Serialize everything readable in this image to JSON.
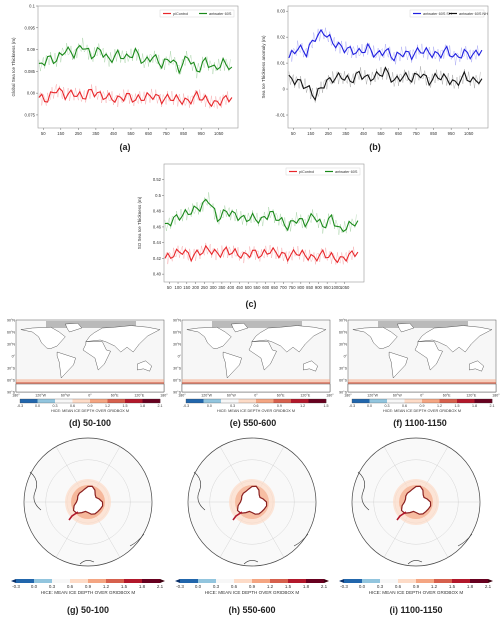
{
  "chart_data": [
    {
      "panel": "a",
      "type": "line",
      "ylabel": "Global Sea Ice Thickness (m)",
      "xlim": [
        20,
        1160
      ],
      "ylim": [
        0.072,
        0.1
      ],
      "xticks": [
        50,
        150,
        250,
        350,
        450,
        550,
        650,
        750,
        850,
        950,
        1050
      ],
      "yticks": [
        0.075,
        0.08,
        0.085,
        0.09,
        0.095,
        0.1
      ],
      "ytick_labels": [
        "0.075",
        "0.08",
        "0.085",
        "0.09",
        "0.095",
        "0.1"
      ],
      "legend_position": "top-right",
      "series": [
        {
          "name": "piControl",
          "color": "#e8262a",
          "x": [
            25,
            75,
            125,
            175,
            225,
            275,
            325,
            375,
            425,
            475,
            525,
            575,
            625,
            675,
            725,
            775,
            825,
            875,
            925,
            975,
            1025,
            1075,
            1125
          ],
          "values": [
            0.079,
            0.0785,
            0.081,
            0.0795,
            0.08,
            0.079,
            0.0805,
            0.0795,
            0.079,
            0.0785,
            0.0795,
            0.0785,
            0.079,
            0.0795,
            0.0785,
            0.079,
            0.0785,
            0.078,
            0.0795,
            0.0785,
            0.0775,
            0.0785,
            0.079
          ]
        },
        {
          "name": "antwater 60S",
          "color": "#1a8a1a",
          "x": [
            25,
            75,
            125,
            175,
            225,
            275,
            325,
            375,
            425,
            475,
            525,
            575,
            625,
            675,
            725,
            775,
            825,
            875,
            925,
            975,
            1025,
            1075,
            1125
          ],
          "values": [
            0.086,
            0.088,
            0.0875,
            0.09,
            0.089,
            0.091,
            0.0885,
            0.09,
            0.0875,
            0.089,
            0.088,
            0.0895,
            0.087,
            0.0885,
            0.0865,
            0.088,
            0.0855,
            0.0885,
            0.085,
            0.0875,
            0.0855,
            0.087,
            0.086
          ]
        }
      ]
    },
    {
      "panel": "b",
      "type": "line",
      "ylabel": "Sea Ice Thickness anomaly (m)",
      "xlim": [
        20,
        1160
      ],
      "ylim": [
        -0.015,
        0.032
      ],
      "xticks": [
        50,
        150,
        250,
        350,
        450,
        550,
        650,
        750,
        850,
        950,
        1050
      ],
      "yticks": [
        -0.01,
        0,
        0.01,
        0.02,
        0.03
      ],
      "ytick_labels": [
        "-0.01",
        "0",
        "0.01",
        "0.02",
        "0.03"
      ],
      "legend_position": "top-right",
      "series": [
        {
          "name": "antwater 60S SH",
          "color": "#1f1fe0",
          "x": [
            25,
            75,
            125,
            175,
            225,
            275,
            325,
            375,
            425,
            475,
            525,
            575,
            625,
            675,
            725,
            775,
            825,
            875,
            925,
            975,
            1025,
            1075,
            1125
          ],
          "values": [
            0.012,
            0.016,
            0.014,
            0.02,
            0.022,
            0.018,
            0.016,
            0.015,
            0.014,
            0.016,
            0.013,
            0.015,
            0.012,
            0.014,
            0.013,
            0.015,
            0.014,
            0.013,
            0.015,
            0.012,
            0.014,
            0.013,
            0.015
          ]
        },
        {
          "name": "antwater 60S NH",
          "color": "#111111",
          "x": [
            25,
            75,
            125,
            175,
            225,
            275,
            325,
            375,
            425,
            475,
            525,
            575,
            625,
            675,
            725,
            775,
            825,
            875,
            925,
            975,
            1025,
            1075,
            1125
          ],
          "values": [
            0.004,
            0.003,
            0.001,
            -0.003,
            0.002,
            0.004,
            0.005,
            0.003,
            0.006,
            0.004,
            0.005,
            0.007,
            0.003,
            0.005,
            0.004,
            0.006,
            0.003,
            0.005,
            0.004,
            0.002,
            0.005,
            0.003,
            0.004
          ]
        }
      ]
    },
    {
      "panel": "c",
      "type": "line",
      "ylabel": "SO Sea Ice Thickness (m)",
      "xlim": [
        20,
        1160
      ],
      "ylim": [
        0.39,
        0.54
      ],
      "xticks": [
        50,
        100,
        150,
        200,
        250,
        300,
        350,
        400,
        450,
        500,
        550,
        600,
        650,
        700,
        750,
        800,
        850,
        900,
        950,
        1000,
        1050
      ],
      "yticks": [
        0.4,
        0.42,
        0.44,
        0.46,
        0.48,
        0.5,
        0.52
      ],
      "ytick_labels": [
        "0.40",
        "0.42",
        "0.44",
        "0.46",
        "0.48",
        "0.5",
        "0.52"
      ],
      "legend_position": "top-right",
      "series": [
        {
          "name": "piControl",
          "color": "#e8262a",
          "x": [
            25,
            75,
            125,
            175,
            225,
            275,
            325,
            375,
            425,
            475,
            525,
            575,
            625,
            675,
            725,
            775,
            825,
            875,
            925,
            975,
            1025,
            1075,
            1125
          ],
          "values": [
            0.42,
            0.425,
            0.43,
            0.422,
            0.428,
            0.432,
            0.425,
            0.43,
            0.427,
            0.423,
            0.428,
            0.424,
            0.43,
            0.426,
            0.422,
            0.428,
            0.424,
            0.42,
            0.426,
            0.422,
            0.418,
            0.424,
            0.428
          ]
        },
        {
          "name": "antwater 60S",
          "color": "#1a8a1a",
          "x": [
            25,
            75,
            125,
            175,
            225,
            275,
            325,
            375,
            425,
            475,
            525,
            575,
            625,
            675,
            725,
            775,
            825,
            875,
            925,
            975,
            1025,
            1075,
            1125
          ],
          "values": [
            0.46,
            0.47,
            0.475,
            0.48,
            0.485,
            0.495,
            0.47,
            0.48,
            0.475,
            0.47,
            0.472,
            0.468,
            0.478,
            0.47,
            0.46,
            0.47,
            0.465,
            0.475,
            0.46,
            0.472,
            0.455,
            0.462,
            0.468
          ]
        }
      ]
    }
  ],
  "captions": {
    "a": "(a)",
    "b": "(b)",
    "c": "(c)",
    "d_letter": "(d)",
    "d_range": "50-100",
    "e_letter": "(e)",
    "e_range": "550-600",
    "f_letter": "(f)",
    "f_range": "1100-1150",
    "g_letter": "(g)",
    "g_range": "50-100",
    "h_letter": "(h)",
    "h_range": "550-600",
    "i_letter": "(i)",
    "i_range": "1100-1150"
  },
  "maps": {
    "lat_labels": [
      "90°N",
      "60°N",
      "30°N",
      "0°",
      "30°S",
      "60°S",
      "90°S"
    ],
    "lon_labels": [
      "180°",
      "120°W",
      "60°W",
      "0°",
      "60°E",
      "120°E",
      "180°"
    ],
    "colorbar_title": "HICE: MEAN ICE DEPTH OVER GRIDBOX  M",
    "colorbar_ticks_a": [
      "-0.3",
      "0.0",
      "0.3",
      "0.6",
      "0.9",
      "1.2",
      "1.5",
      "1.8",
      "2.1"
    ],
    "colorbar_ticks_b": [
      "-0.3",
      "0.0",
      "0.3",
      "0.6",
      "0.9",
      "1.2",
      "1.5"
    ],
    "colorbar_ticks_c": [
      "-0.3",
      "0.0",
      "0.3",
      "0.6",
      "0.9",
      "1.2",
      "1.5",
      "1.8",
      "2.1"
    ],
    "polar_colorbar_ticks": [
      "-0.3",
      "0.0",
      "0.3",
      "0.6",
      "0.9",
      "1.2",
      "1.5",
      "1.8",
      "2.1"
    ],
    "colors": {
      "neg": "#2166ac",
      "zero": "#f7f7f7",
      "pos_low": "#f4a582",
      "pos_mid": "#d6604d",
      "pos_high": "#67001f"
    }
  }
}
